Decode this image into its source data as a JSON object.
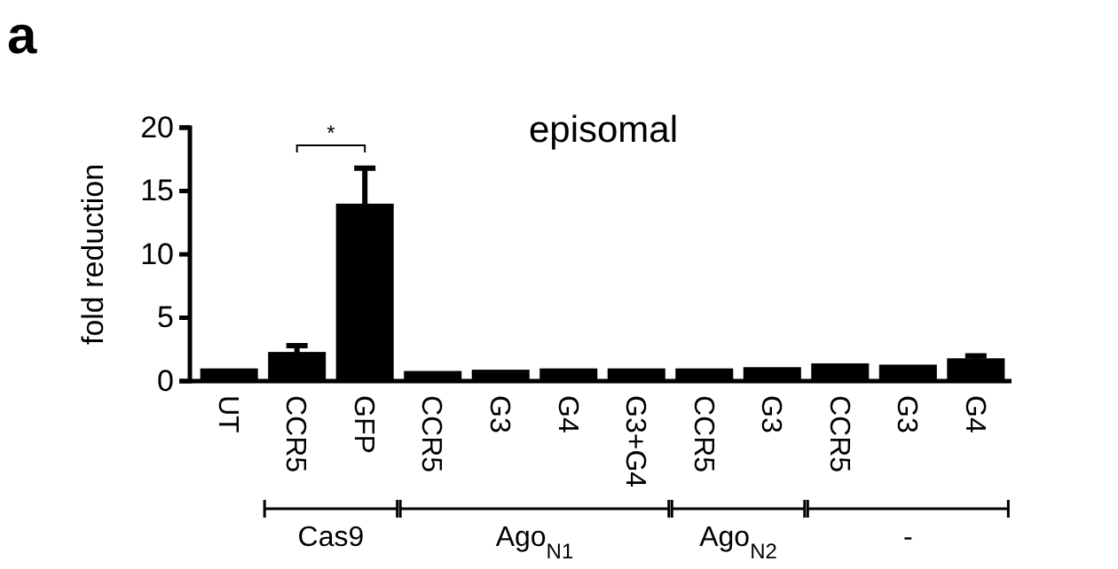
{
  "chart_data": {
    "type": "bar",
    "title": "episomal",
    "ylabel": "fold reduction",
    "categories": [
      "UT",
      "CCR5",
      "GFP",
      "CCR5",
      "G3",
      "G4",
      "G3+G4",
      "CCR5",
      "G3",
      "CCR5",
      "G3",
      "G4"
    ],
    "values": [
      1.0,
      2.3,
      14.0,
      0.8,
      0.9,
      1.0,
      1.0,
      1.0,
      1.1,
      1.4,
      1.3,
      1.8
    ],
    "errors": [
      null,
      0.5,
      2.8,
      null,
      null,
      null,
      null,
      null,
      null,
      null,
      null,
      0.2
    ],
    "color": "#000000",
    "ylim": [
      0,
      20
    ],
    "yticks": [
      0,
      5,
      10,
      15,
      20
    ],
    "grid": false,
    "annotations": [
      "a",
      "*",
      "Cas9",
      "Ago$_{N1}$",
      "Ago$_{N2}$",
      "-"
    ]
  }
}
